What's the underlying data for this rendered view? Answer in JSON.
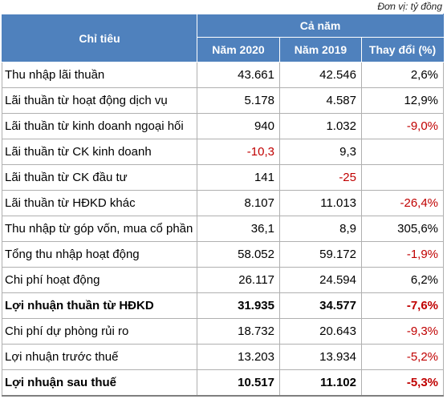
{
  "unit_note": "Đơn vị: tỷ đồng",
  "header": {
    "label_col": "Chỉ tiêu",
    "group": "Cả năm",
    "col_2020": "Năm 2020",
    "col_2019": "Năm 2019",
    "col_change": "Thay đổi (%)"
  },
  "rows": [
    {
      "label": "Thu nhập lãi thuần",
      "y2020": "43.661",
      "y2019": "42.546",
      "change": "2,6%",
      "bold": false
    },
    {
      "label": "Lãi thuần từ hoạt động dịch vụ",
      "y2020": "5.178",
      "y2019": "4.587",
      "change": "12,9%",
      "bold": false
    },
    {
      "label": "Lãi thuần từ kinh doanh ngoại hối",
      "y2020": "940",
      "y2019": "1.032",
      "change": "-9,0%",
      "bold": false
    },
    {
      "label": "Lãi thuần từ CK kinh doanh",
      "y2020": "-10,3",
      "y2019": "9,3",
      "change": "",
      "bold": false
    },
    {
      "label": "Lãi thuần từ CK đầu tư",
      "y2020": "141",
      "y2019": "-25",
      "change": "",
      "bold": false
    },
    {
      "label": "Lãi thuần từ HĐKD khác",
      "y2020": "8.107",
      "y2019": "11.013",
      "change": "-26,4%",
      "bold": false
    },
    {
      "label": "Thu nhập từ góp vốn, mua cổ phần",
      "y2020": "36,1",
      "y2019": "8,9",
      "change": "305,6%",
      "bold": false
    },
    {
      "label": "Tổng thu nhập hoạt động",
      "y2020": "58.052",
      "y2019": "59.172",
      "change": "-1,9%",
      "bold": false
    },
    {
      "label": "Chi phí hoạt động",
      "y2020": "26.117",
      "y2019": "24.594",
      "change": "6,2%",
      "bold": false
    },
    {
      "label": "Lợi nhuận thuần từ HĐKD",
      "y2020": "31.935",
      "y2019": "34.577",
      "change": "-7,6%",
      "bold": true
    },
    {
      "label": "Chi phí dự phòng rủi ro",
      "y2020": "18.732",
      "y2019": "20.643",
      "change": "-9,3%",
      "bold": false
    },
    {
      "label": "Lợi nhuận trước thuế",
      "y2020": "13.203",
      "y2019": "13.934",
      "change": "-5,2%",
      "bold": false
    },
    {
      "label": "Lợi nhuận sau thuế",
      "y2020": "10.517",
      "y2019": "11.102",
      "change": "-5,3%",
      "bold": true
    }
  ],
  "colors": {
    "header_bg": "#4f81bd",
    "negative": "#c00000"
  }
}
